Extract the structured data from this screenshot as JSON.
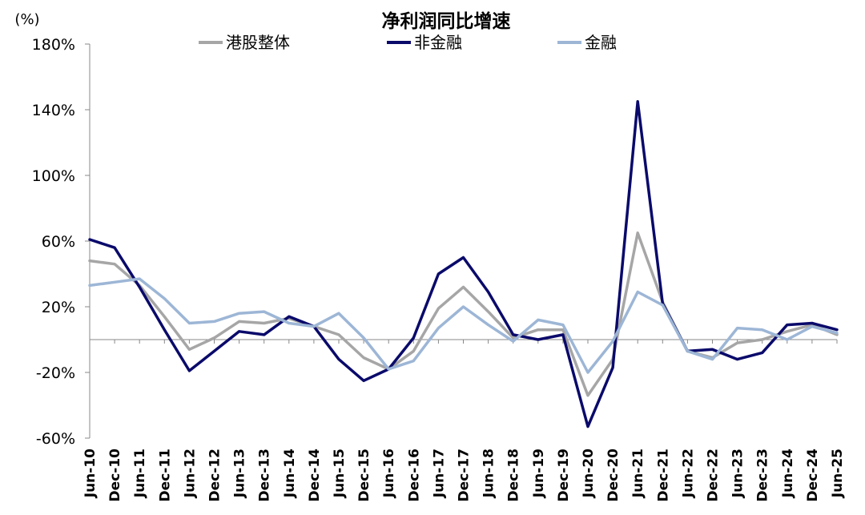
{
  "chart_data": {
    "type": "line",
    "title": "净利润同比增速",
    "unit_label": "(%)",
    "ylim": [
      -60,
      180
    ],
    "y_ticks": [
      "180%",
      "140%",
      "100%",
      "60%",
      "20%",
      "-20%",
      "-60%"
    ],
    "y_tick_values": [
      180,
      140,
      100,
      60,
      20,
      -20,
      -60
    ],
    "categories": [
      "Jun-10",
      "Dec-10",
      "Jun-11",
      "Dec-11",
      "Jun-12",
      "Dec-12",
      "Jun-13",
      "Dec-13",
      "Jun-14",
      "Dec-14",
      "Jun-15",
      "Dec-15",
      "Jun-16",
      "Dec-16",
      "Jun-17",
      "Dec-17",
      "Jun-18",
      "Dec-18",
      "Jun-19",
      "Dec-19",
      "Jun-20",
      "Dec-20",
      "Jun-21",
      "Dec-21",
      "Jun-22",
      "Dec-22",
      "Jun-23",
      "Dec-23",
      "Jun-24",
      "Dec-24",
      "Jun-25"
    ],
    "legend_position": "top",
    "grid": false,
    "series": [
      {
        "name": "港股整体",
        "color": "#a6a6a6",
        "values": [
          48,
          46,
          33,
          14,
          -6,
          1,
          11,
          10,
          13,
          8,
          3,
          -11,
          -18,
          -7,
          19,
          32,
          17,
          1,
          6,
          6,
          -34,
          -12,
          65,
          23,
          -7,
          -11,
          -2,
          0,
          5,
          9,
          3
        ]
      },
      {
        "name": "非金融",
        "color": "#0a0a6b",
        "values": [
          61,
          56,
          32,
          6,
          -19,
          -7,
          5,
          3,
          14,
          8,
          -12,
          -25,
          -18,
          1,
          40,
          50,
          29,
          3,
          0,
          3,
          -53,
          -17,
          145,
          22,
          -7,
          -6,
          -12,
          -8,
          9,
          10,
          6
        ]
      },
      {
        "name": "金融",
        "color": "#9db6d6",
        "values": [
          33,
          35,
          37,
          25,
          10,
          11,
          16,
          17,
          10,
          8,
          16,
          1,
          -18,
          -13,
          7,
          20,
          9,
          -1,
          12,
          9,
          -20,
          -1,
          29,
          21,
          -7,
          -12,
          7,
          6,
          0,
          8,
          4
        ]
      }
    ]
  }
}
